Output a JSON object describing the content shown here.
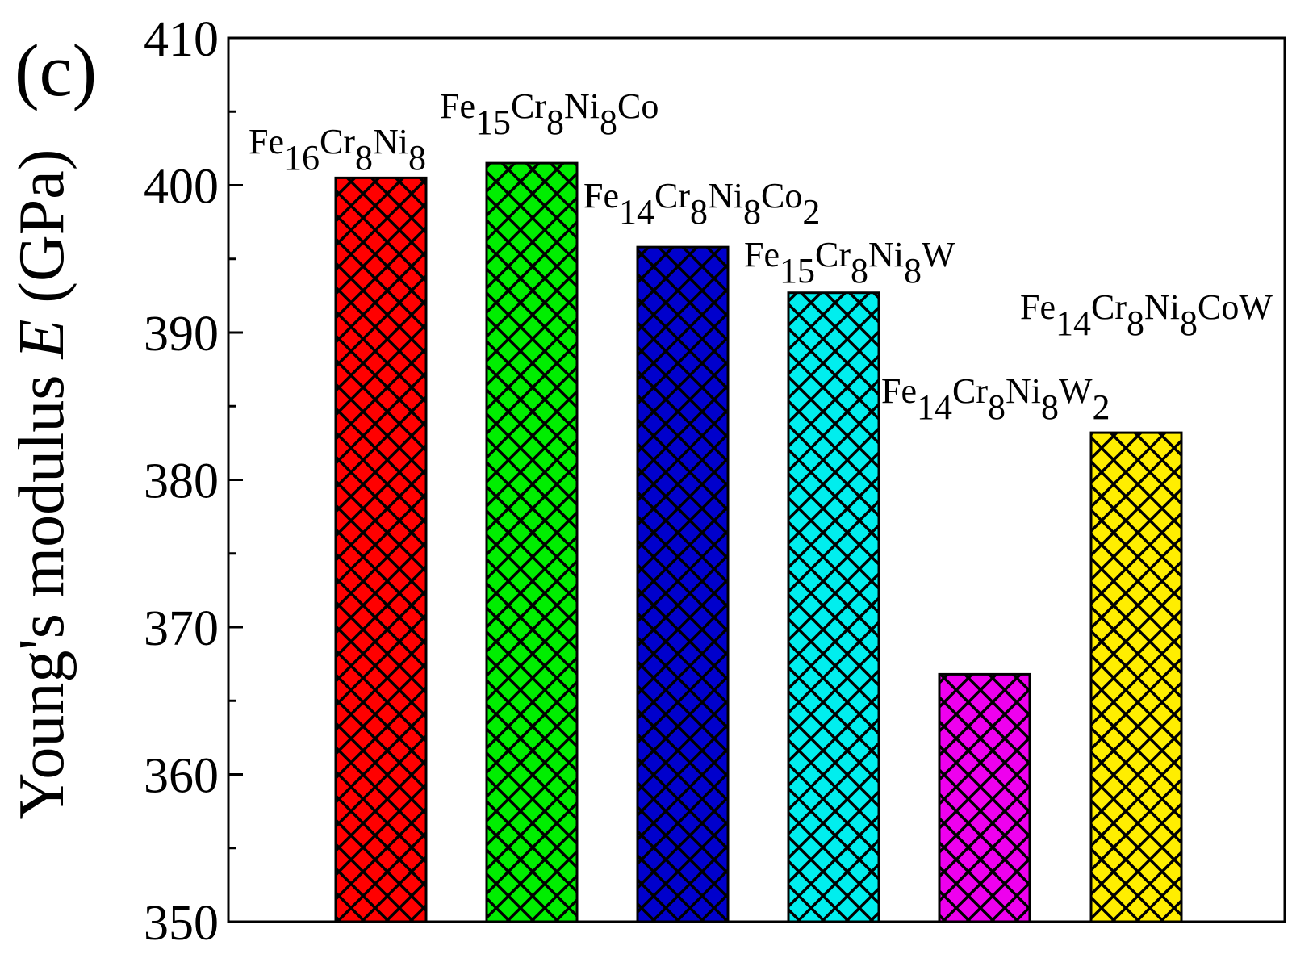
{
  "chart_data": {
    "type": "bar",
    "panel_label": "(c)",
    "ylabel": "Young's modulus E (GPa)",
    "ylabel_parts": {
      "before": "Young's modulus ",
      "italic": "E",
      "after": " (GPa)"
    },
    "ylim": [
      350,
      410
    ],
    "yticks": [
      350,
      360,
      370,
      380,
      390,
      400,
      410
    ],
    "grid": false,
    "categories": [
      "Fe16Cr8Ni8",
      "Fe15Cr8Ni8Co",
      "Fe14Cr8Ni8Co2",
      "Fe15Cr8Ni8W",
      "Fe14Cr8Ni8W2",
      "Fe14Cr8Ni8CoW"
    ],
    "values": [
      400.5,
      401.5,
      395.8,
      392.7,
      366.8,
      383.2
    ],
    "bar_colors": [
      "#ff0000",
      "#00ee00",
      "#0000cc",
      "#00eeee",
      "#ee00ee",
      "#ffee00"
    ],
    "pattern": "crosshatch"
  }
}
